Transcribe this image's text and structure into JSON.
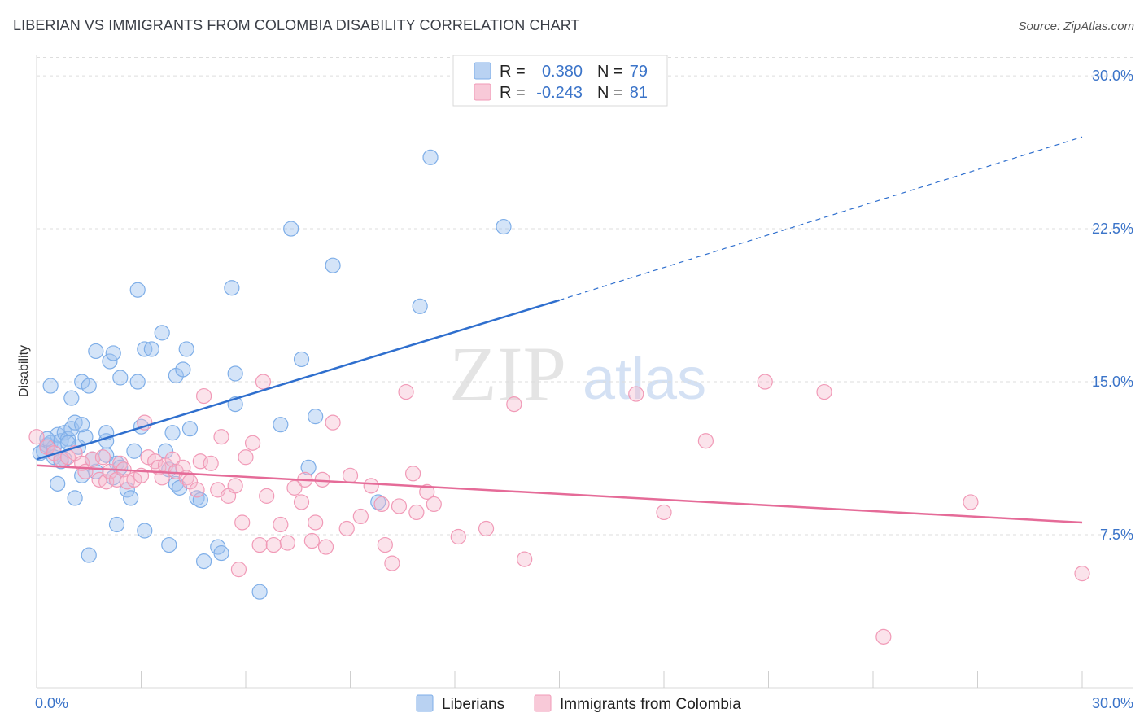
{
  "header": {
    "title": "LIBERIAN VS IMMIGRANTS FROM COLOMBIA DISABILITY CORRELATION CHART",
    "source": "Source: ZipAtlas.com"
  },
  "watermark": {
    "zip": "ZIP",
    "atlas": "atlas"
  },
  "legend": {
    "r_label": "R =",
    "n_label": "N =",
    "rows": [
      {
        "r": "0.380",
        "n": "79",
        "color": "#7eaee8"
      },
      {
        "r": "-0.243",
        "n": "81",
        "color": "#f19ab7"
      }
    ]
  },
  "bottom_legend": [
    {
      "label": "Liberians",
      "color": "#7eaee8"
    },
    {
      "label": "Immigrants from Colombia",
      "color": "#f19ab7"
    }
  ],
  "chart_data": {
    "type": "scatter",
    "title": "LIBERIAN VS IMMIGRANTS FROM COLOMBIA DISABILITY CORRELATION CHART",
    "xlabel": "",
    "ylabel": "Disability",
    "xlim": [
      0,
      30
    ],
    "ylim": [
      0,
      31
    ],
    "x_tick_labels": [
      "0.0%",
      "30.0%"
    ],
    "y_ticks": [
      7.5,
      15.0,
      22.5,
      30.0
    ],
    "y_tick_labels": [
      "7.5%",
      "15.0%",
      "22.5%",
      "30.0%"
    ],
    "grid": "horizontal dashed",
    "legend_position": "top-center",
    "series": [
      {
        "name": "Liberians",
        "color": "#7eaee8",
        "trend": {
          "x": [
            0,
            15
          ],
          "y": [
            11.2,
            19.0
          ],
          "dashed_extension": {
            "x": [
              15,
              30
            ],
            "y": [
              19.0,
              27.0
            ]
          }
        },
        "points": [
          [
            0.2,
            11.6
          ],
          [
            0.3,
            11.9
          ],
          [
            0.4,
            12.0
          ],
          [
            0.5,
            11.8
          ],
          [
            0.6,
            12.4
          ],
          [
            0.7,
            12.1
          ],
          [
            0.8,
            12.5
          ],
          [
            0.9,
            12.2
          ],
          [
            0.8,
            11.2
          ],
          [
            1.0,
            12.7
          ],
          [
            1.1,
            13.0
          ],
          [
            0.4,
            14.8
          ],
          [
            1.0,
            14.2
          ],
          [
            1.3,
            15.0
          ],
          [
            1.5,
            14.8
          ],
          [
            1.7,
            16.5
          ],
          [
            2.1,
            16.0
          ],
          [
            2.2,
            16.4
          ],
          [
            2.4,
            15.2
          ],
          [
            2.9,
            15.0
          ],
          [
            3.1,
            16.6
          ],
          [
            3.3,
            16.6
          ],
          [
            3.6,
            17.4
          ],
          [
            4.0,
            15.3
          ],
          [
            4.2,
            15.6
          ],
          [
            4.3,
            16.6
          ],
          [
            2.9,
            19.5
          ],
          [
            5.6,
            19.6
          ],
          [
            7.3,
            22.5
          ],
          [
            8.5,
            20.7
          ],
          [
            11.0,
            18.7
          ],
          [
            11.3,
            26.0
          ],
          [
            13.4,
            22.6
          ],
          [
            1.4,
            12.3
          ],
          [
            2.0,
            12.1
          ],
          [
            2.0,
            11.4
          ],
          [
            2.3,
            11.0
          ],
          [
            2.8,
            11.6
          ],
          [
            3.0,
            12.8
          ],
          [
            3.7,
            11.6
          ],
          [
            3.9,
            12.5
          ],
          [
            4.4,
            12.7
          ],
          [
            5.7,
            13.9
          ],
          [
            5.7,
            15.4
          ],
          [
            7.0,
            12.9
          ],
          [
            7.6,
            16.1
          ],
          [
            8.0,
            13.3
          ],
          [
            0.6,
            10.0
          ],
          [
            1.1,
            9.3
          ],
          [
            1.3,
            10.4
          ],
          [
            1.7,
            10.6
          ],
          [
            2.2,
            10.3
          ],
          [
            2.4,
            10.8
          ],
          [
            2.6,
            9.7
          ],
          [
            2.7,
            9.3
          ],
          [
            3.8,
            10.7
          ],
          [
            4.0,
            10.0
          ],
          [
            4.1,
            9.8
          ],
          [
            4.6,
            9.3
          ],
          [
            4.7,
            9.2
          ],
          [
            7.8,
            10.8
          ],
          [
            9.8,
            9.1
          ],
          [
            2.3,
            8.0
          ],
          [
            3.1,
            7.7
          ],
          [
            3.8,
            7.0
          ],
          [
            4.8,
            6.2
          ],
          [
            5.2,
            6.9
          ],
          [
            5.3,
            6.6
          ],
          [
            1.5,
            6.5
          ],
          [
            6.4,
            4.7
          ],
          [
            0.1,
            11.5
          ],
          [
            0.5,
            11.3
          ],
          [
            1.2,
            11.8
          ],
          [
            0.7,
            11.1
          ],
          [
            1.6,
            11.2
          ],
          [
            2.0,
            12.5
          ],
          [
            1.3,
            12.9
          ],
          [
            0.9,
            12.0
          ],
          [
            0.3,
            12.2
          ]
        ]
      },
      {
        "name": "Immigrants from Colombia",
        "color": "#f19ab7",
        "trend": {
          "x": [
            0,
            30
          ],
          "y": [
            10.9,
            8.1
          ]
        },
        "points": [
          [
            0.0,
            12.3
          ],
          [
            0.3,
            11.8
          ],
          [
            0.5,
            11.5
          ],
          [
            0.7,
            11.2
          ],
          [
            0.9,
            11.3
          ],
          [
            1.1,
            11.5
          ],
          [
            1.3,
            11.0
          ],
          [
            1.4,
            10.6
          ],
          [
            1.6,
            11.2
          ],
          [
            1.8,
            10.2
          ],
          [
            1.9,
            11.3
          ],
          [
            2.0,
            10.1
          ],
          [
            2.1,
            10.6
          ],
          [
            2.3,
            10.2
          ],
          [
            2.4,
            11.0
          ],
          [
            2.5,
            10.7
          ],
          [
            2.6,
            10.1
          ],
          [
            2.8,
            10.2
          ],
          [
            3.0,
            10.4
          ],
          [
            3.1,
            13.0
          ],
          [
            3.2,
            11.3
          ],
          [
            3.4,
            11.1
          ],
          [
            3.5,
            10.8
          ],
          [
            3.6,
            10.3
          ],
          [
            3.7,
            10.9
          ],
          [
            3.9,
            11.2
          ],
          [
            4.0,
            10.6
          ],
          [
            4.2,
            10.8
          ],
          [
            4.3,
            10.3
          ],
          [
            4.4,
            10.1
          ],
          [
            4.6,
            9.7
          ],
          [
            4.7,
            11.1
          ],
          [
            4.8,
            14.3
          ],
          [
            5.0,
            11.0
          ],
          [
            5.2,
            9.7
          ],
          [
            5.3,
            12.3
          ],
          [
            5.5,
            9.4
          ],
          [
            5.7,
            9.9
          ],
          [
            5.8,
            5.8
          ],
          [
            5.9,
            8.1
          ],
          [
            6.0,
            11.3
          ],
          [
            6.2,
            12.0
          ],
          [
            6.4,
            7.0
          ],
          [
            6.5,
            15.0
          ],
          [
            6.6,
            9.4
          ],
          [
            6.8,
            7.0
          ],
          [
            7.0,
            8.0
          ],
          [
            7.2,
            7.1
          ],
          [
            7.4,
            9.8
          ],
          [
            7.6,
            9.1
          ],
          [
            7.7,
            10.2
          ],
          [
            7.9,
            7.2
          ],
          [
            8.0,
            8.1
          ],
          [
            8.2,
            10.2
          ],
          [
            8.3,
            6.9
          ],
          [
            8.5,
            13.0
          ],
          [
            8.9,
            7.8
          ],
          [
            9.0,
            10.4
          ],
          [
            9.3,
            8.4
          ],
          [
            9.6,
            9.9
          ],
          [
            9.9,
            9.0
          ],
          [
            10.0,
            7.0
          ],
          [
            10.2,
            6.1
          ],
          [
            10.4,
            8.9
          ],
          [
            10.6,
            14.5
          ],
          [
            10.8,
            10.5
          ],
          [
            10.9,
            8.6
          ],
          [
            11.2,
            9.6
          ],
          [
            11.4,
            9.0
          ],
          [
            12.1,
            7.4
          ],
          [
            12.9,
            7.8
          ],
          [
            13.7,
            13.9
          ],
          [
            14.0,
            6.3
          ],
          [
            17.2,
            14.4
          ],
          [
            18.0,
            8.6
          ],
          [
            19.2,
            12.1
          ],
          [
            20.9,
            15.0
          ],
          [
            22.6,
            14.5
          ],
          [
            26.8,
            9.1
          ],
          [
            30.0,
            5.6
          ],
          [
            24.3,
            2.5
          ]
        ]
      }
    ]
  }
}
